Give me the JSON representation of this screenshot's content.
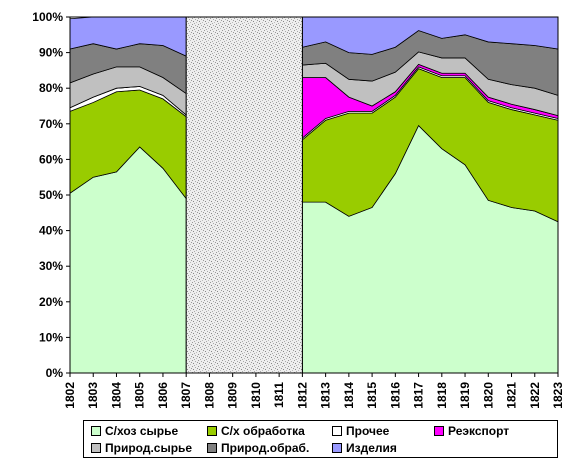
{
  "chart_data": {
    "type": "area",
    "stacked": true,
    "normalized": true,
    "x": [
      "1802",
      "1803",
      "1804",
      "1805",
      "1806",
      "1807",
      "1808",
      "1809",
      "1810",
      "1811",
      "1812",
      "1813",
      "1814",
      "1815",
      "1816",
      "1817",
      "1818",
      "1819",
      "1820",
      "1821",
      "1822",
      "1823"
    ],
    "ylim": [
      0,
      100
    ],
    "yticks": [
      "0%",
      "10%",
      "20%",
      "30%",
      "40%",
      "50%",
      "60%",
      "70%",
      "80%",
      "90%",
      "100%"
    ],
    "gap": [
      "1807",
      "1812"
    ],
    "series": [
      {
        "name": "С/хоз сырье",
        "color": "#CCFFCC",
        "values": [
          50.5,
          55,
          56.5,
          63.5,
          57.5,
          49,
          null,
          null,
          null,
          null,
          48,
          48,
          44,
          46.5,
          56,
          69.5,
          63,
          58.5,
          48.5,
          46.5,
          45.5,
          42.5
        ]
      },
      {
        "name": "С/х обработка",
        "color": "#99CC00",
        "values": [
          23,
          21,
          22.5,
          16,
          19.5,
          23,
          null,
          null,
          null,
          null,
          17.5,
          23,
          29,
          26.5,
          21.5,
          16,
          20,
          24.5,
          27.5,
          27.5,
          27,
          28.5
        ]
      },
      {
        "name": "Прочее",
        "color": "#FFFFFF",
        "values": [
          1,
          1.5,
          1,
          1,
          1,
          0.5,
          null,
          null,
          null,
          null,
          0.5,
          0.5,
          0.5,
          0.5,
          0.5,
          0.5,
          0.5,
          0.5,
          0.5,
          0.5,
          0.5,
          0.5
        ]
      },
      {
        "name": "Реэкспорт",
        "color": "#FF00FF",
        "values": [
          0,
          0,
          0,
          0,
          0,
          0,
          null,
          null,
          null,
          null,
          17,
          11.5,
          4,
          1.5,
          1,
          0.7,
          0.7,
          0.7,
          1,
          1,
          1,
          0.8
        ]
      },
      {
        "name": "Природ.сырье",
        "color": "#C0C0C0",
        "values": [
          7,
          6.5,
          6,
          5.5,
          5,
          6,
          null,
          null,
          null,
          null,
          3.5,
          4,
          5,
          7,
          5.5,
          3.5,
          4.3,
          4.3,
          5,
          5.5,
          6,
          5.7
        ]
      },
      {
        "name": "Природ.обраб.",
        "color": "#808080",
        "values": [
          9.5,
          8.5,
          5,
          6.5,
          9,
          10.5,
          null,
          null,
          null,
          null,
          5,
          6,
          7.5,
          7.5,
          7,
          6,
          5.5,
          6.5,
          10.5,
          11.5,
          12,
          13
        ]
      },
      {
        "name": "Изделия",
        "color": "#9999FF",
        "values": [
          8.5,
          7.5,
          9,
          7.5,
          8,
          11,
          null,
          null,
          null,
          null,
          8.5,
          7,
          10,
          10.5,
          8.5,
          3.8,
          6,
          5,
          7,
          7.5,
          8,
          9
        ]
      }
    ],
    "legend_position": "bottom",
    "grid": false
  }
}
